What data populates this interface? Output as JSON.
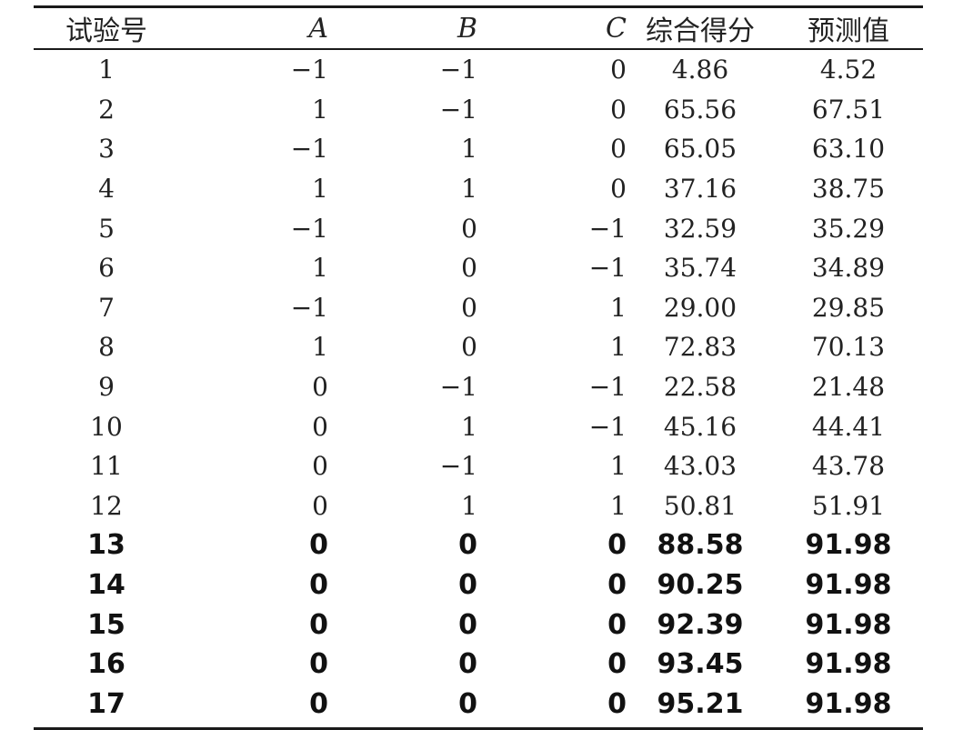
{
  "table": {
    "headers": [
      "试验号",
      "A",
      "B",
      "C",
      "综合得分",
      "预测值"
    ],
    "rows": [
      [
        "1",
        "−1",
        "−1",
        "0",
        "4.86",
        "4.52"
      ],
      [
        "2",
        "1",
        "−1",
        "0",
        "65.56",
        "67.51"
      ],
      [
        "3",
        "−1",
        "1",
        "0",
        "65.05",
        "63.10"
      ],
      [
        "4",
        "1",
        "1",
        "0",
        "37.16",
        "38.75"
      ],
      [
        "5",
        "−1",
        "0",
        "−1",
        "32.59",
        "35.29"
      ],
      [
        "6",
        "1",
        "0",
        "−1",
        "35.74",
        "34.89"
      ],
      [
        "7",
        "−1",
        "0",
        "1",
        "29.00",
        "29.85"
      ],
      [
        "8",
        "1",
        "0",
        "1",
        "72.83",
        "70.13"
      ],
      [
        "9",
        "0",
        "−1",
        "−1",
        "22.58",
        "21.48"
      ],
      [
        "10",
        "0",
        "1",
        "−1",
        "45.16",
        "44.41"
      ],
      [
        "11",
        "0",
        "−1",
        "1",
        "43.03",
        "43.78"
      ],
      [
        "12",
        "0",
        "1",
        "1",
        "50.81",
        "51.91"
      ],
      [
        "13",
        "0",
        "0",
        "0",
        "88.58",
        "91.98"
      ],
      [
        "14",
        "0",
        "0",
        "0",
        "90.25",
        "91.98"
      ],
      [
        "15",
        "0",
        "0",
        "0",
        "92.39",
        "91.98"
      ],
      [
        "16",
        "0",
        "0",
        "0",
        "93.45",
        "91.98"
      ],
      [
        "17",
        "0",
        "0",
        "0",
        "95.21",
        "91.98"
      ]
    ]
  }
}
